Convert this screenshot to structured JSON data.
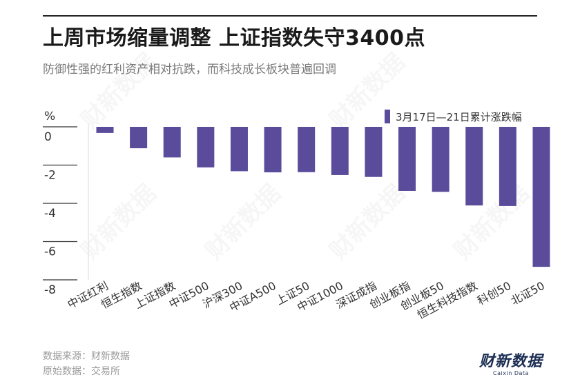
{
  "title": "上周市场缩量调整  上证指数失守3400点",
  "subtitle": "防御性强的红利资产相对抗跌，而科技成长板块普遍回调",
  "footer": {
    "source": "数据来源：财新数据",
    "origin": "原始数据：交易所"
  },
  "brand": {
    "name_cn": "财新数据",
    "name_en": "Caixin Data",
    "watermark": "财新数据"
  },
  "colors": {
    "bar": "#5a4b9b",
    "axis_text": "#333333",
    "gridline": "#e6e6e6"
  },
  "chart_data": {
    "type": "bar",
    "unit_label": "%",
    "categories": [
      "中证红利",
      "恒生指数",
      "上证指数",
      "中证500",
      "沪深300",
      "中证A500",
      "上证50",
      "中证1000",
      "深证成指",
      "创业板指",
      "创业板50",
      "恒生科技指数",
      "科创50",
      "北证50"
    ],
    "series": [
      {
        "name": "3月17日—21日累计涨跌幅",
        "values": [
          -0.32,
          -1.12,
          -1.6,
          -2.12,
          -2.32,
          -2.38,
          -2.37,
          -2.52,
          -2.62,
          -3.35,
          -3.4,
          -4.11,
          -4.14,
          -7.32
        ]
      }
    ],
    "ylim": [
      -8,
      0
    ],
    "yticks": [
      0,
      -2,
      -4,
      -6,
      -8
    ],
    "grid": "vertical-left-axis",
    "legend_position": "top-right"
  }
}
